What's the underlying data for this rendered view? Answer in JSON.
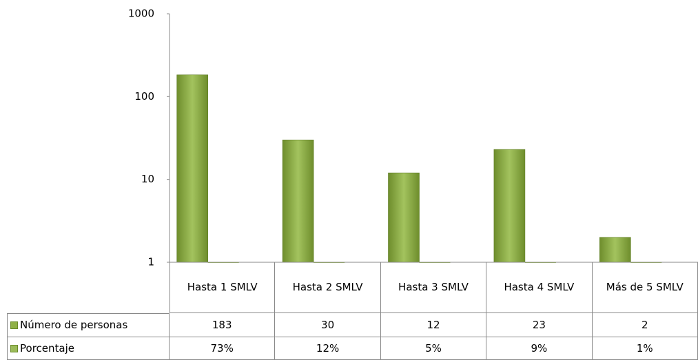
{
  "chart_data": {
    "type": "bar",
    "categories": [
      "Hasta  1 SMLV",
      "Hasta 2 SMLV",
      "Hasta 3 SMLV",
      "Hasta 4 SMLV",
      "Más de 5 SMLV"
    ],
    "series": [
      {
        "name": "Número de personas",
        "color": "#8fb046",
        "values": [
          183,
          30,
          12,
          23,
          2
        ]
      },
      {
        "name": "Porcentaje",
        "color": "#9bbb59",
        "values": [
          0.73,
          0.12,
          0.05,
          0.09,
          0.01
        ],
        "value_labels": [
          "73%",
          "12%",
          "5%",
          "9%",
          "1%"
        ]
      }
    ],
    "ylim": [
      1,
      1000
    ],
    "yticks": [
      1,
      10,
      100,
      1000
    ],
    "log_scale": true,
    "grid": false,
    "data_table": true
  }
}
